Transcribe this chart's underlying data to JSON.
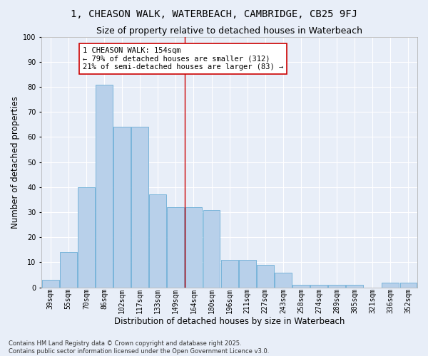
{
  "title1": "1, CHEASON WALK, WATERBEACH, CAMBRIDGE, CB25 9FJ",
  "title2": "Size of property relative to detached houses in Waterbeach",
  "xlabel": "Distribution of detached houses by size in Waterbeach",
  "ylabel": "Number of detached properties",
  "categories": [
    "39sqm",
    "55sqm",
    "70sqm",
    "86sqm",
    "102sqm",
    "117sqm",
    "133sqm",
    "149sqm",
    "164sqm",
    "180sqm",
    "196sqm",
    "211sqm",
    "227sqm",
    "243sqm",
    "258sqm",
    "274sqm",
    "289sqm",
    "305sqm",
    "321sqm",
    "336sqm",
    "352sqm"
  ],
  "values": [
    3,
    14,
    40,
    81,
    64,
    64,
    37,
    32,
    32,
    31,
    11,
    11,
    9,
    6,
    1,
    1,
    1,
    1,
    0,
    2,
    2
  ],
  "bar_color": "#b8d0ea",
  "bar_edge_color": "#6baed6",
  "background_color": "#e8eef8",
  "grid_color": "#ffffff",
  "annotation_text": "1 CHEASON WALK: 154sqm\n← 79% of detached houses are smaller (312)\n21% of semi-detached houses are larger (83) →",
  "annotation_box_color": "#ffffff",
  "annotation_box_edge": "#cc0000",
  "red_line_x": 7.5,
  "ylim": [
    0,
    100
  ],
  "footer_text": "Contains HM Land Registry data © Crown copyright and database right 2025.\nContains public sector information licensed under the Open Government Licence v3.0.",
  "title1_fontsize": 10,
  "title2_fontsize": 9,
  "xlabel_fontsize": 8.5,
  "ylabel_fontsize": 8.5,
  "tick_fontsize": 7,
  "annotation_fontsize": 7.5,
  "footer_fontsize": 6
}
